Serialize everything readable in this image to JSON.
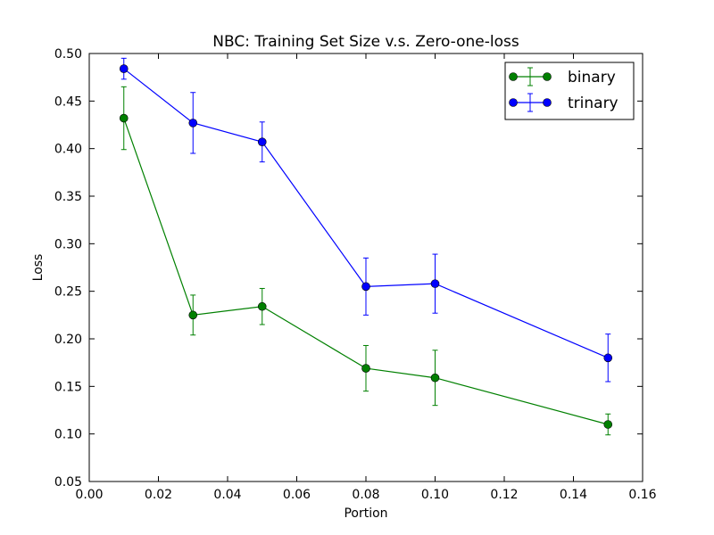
{
  "chart_data": {
    "type": "line",
    "title": "NBC: Training Set Size v.s. Zero-one-loss",
    "xlabel": "Portion",
    "ylabel": "Loss",
    "xlim": [
      0.0,
      0.16
    ],
    "ylim": [
      0.05,
      0.5
    ],
    "xticks": [
      "0.00",
      "0.02",
      "0.04",
      "0.06",
      "0.08",
      "0.10",
      "0.12",
      "0.14",
      "0.16"
    ],
    "yticks": [
      "0.05",
      "0.10",
      "0.15",
      "0.20",
      "0.25",
      "0.30",
      "0.35",
      "0.40",
      "0.45",
      "0.50"
    ],
    "x": [
      0.01,
      0.03,
      0.05,
      0.08,
      0.1,
      0.15
    ],
    "legend_position": "top-right",
    "grid": false,
    "series": [
      {
        "name": "binary",
        "color": "#008000",
        "values": [
          0.432,
          0.225,
          0.234,
          0.169,
          0.159,
          0.11
        ],
        "errors": [
          0.033,
          0.021,
          0.019,
          0.024,
          0.029,
          0.011
        ]
      },
      {
        "name": "trinary",
        "color": "#0000ff",
        "values": [
          0.484,
          0.427,
          0.407,
          0.255,
          0.258,
          0.18
        ],
        "errors": [
          0.011,
          0.032,
          0.021,
          0.03,
          0.031,
          0.025
        ]
      }
    ]
  }
}
